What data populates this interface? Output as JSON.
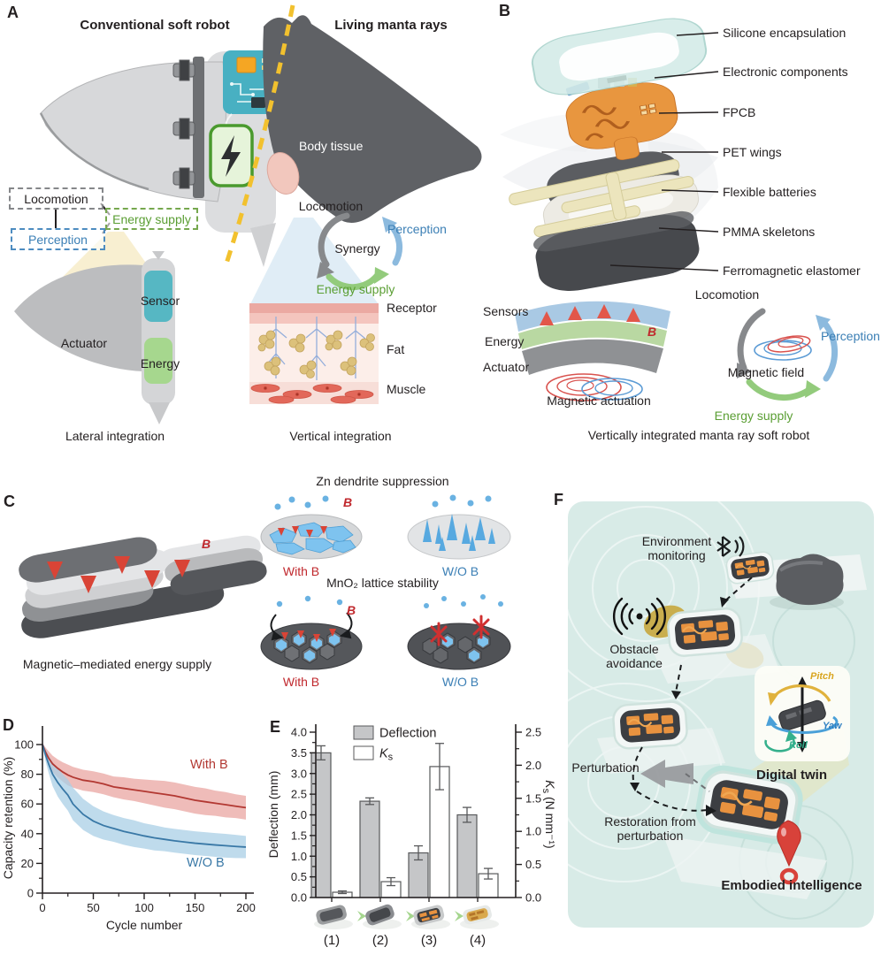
{
  "colors": {
    "red": "#c0282d",
    "blue": "#3b7fb5",
    "green": "#5a9e33",
    "gray": "#85878a",
    "teal_pcb": "#48b0c2",
    "battery_green": "#4a9a2e",
    "divider_yellow": "#f2c12e",
    "fpcb_orange": "#e8963f",
    "water": "#d8ebe7",
    "fin_gold": "#c9ae4e",
    "pitch_gold": "#d9a520",
    "yaw_blue": "#2d7fc2",
    "roll_green": "#2fae8a"
  },
  "panels": {
    "A": {
      "label": "A",
      "title_left": "Conventional soft robot",
      "title_right": "Living manta rays",
      "body_tissue": "Body tissue",
      "box_locomotion": "Locomotion",
      "box_perception": "Perception",
      "box_energy": "Energy supply",
      "actuator": "Actuator",
      "sensor": "Sensor",
      "energy": "Energy",
      "cycle_top": "Locomotion",
      "cycle_right": "Perception",
      "cycle_center": "Synergy",
      "cycle_bottom": "Energy supply",
      "skin_receptor": "Receptor",
      "skin_fat": "Fat",
      "skin_muscle": "Muscle",
      "caption_left": "Lateral integration",
      "caption_right": "Vertical integration"
    },
    "B": {
      "label": "B",
      "layers": [
        "Silicone encapsulation",
        "Electronic components",
        "FPCB",
        "PET wings",
        "Flexible batteries",
        "PMMA skeletons",
        "Ferromagnetic elastomer"
      ],
      "stack_sensors": "Sensors",
      "stack_energy": "Energy",
      "stack_actuator": "Actuator",
      "b_symbol": "B",
      "stack_caption": "Magnetic actuation",
      "cycle_top": "Locomotion",
      "cycle_right": "Perception",
      "cycle_center": "Magnetic field",
      "cycle_bottom": "Energy supply",
      "caption": "Vertically integrated manta ray soft robot"
    },
    "C": {
      "label": "C",
      "caption_left": "Magnetic–mediated energy supply",
      "b_symbol": "B",
      "zn_title": "Zn dendrite suppression",
      "mno2_title": "MnO₂ lattice stability",
      "with_b": "With B",
      "wo_b": "W/O B"
    },
    "D": {
      "label": "D"
    },
    "E": {
      "label": "E"
    },
    "F": {
      "label": "F",
      "environment_monitoring": "Environment monitoring",
      "obstacle_avoidance": "Obstacle avoidance",
      "perturbation": "Perturbation",
      "restoration": "Restoration from perturbation",
      "digital_twin": "Digital twin",
      "embodied": "Embodied intelligence",
      "pitch": "Pitch",
      "yaw": "Yaw",
      "roll": "Roll"
    }
  },
  "chart_data": [
    {
      "id": "D",
      "type": "line",
      "xlabel": "Cycle number",
      "ylabel": "Capacity retention (%)",
      "xlim": [
        0,
        200
      ],
      "ylim": [
        0,
        100
      ],
      "xticks": [
        0,
        50,
        100,
        150,
        200
      ],
      "yticks": [
        0,
        20,
        40,
        60,
        80,
        100
      ],
      "grid": false,
      "series": [
        {
          "name": "With B",
          "color": "#b23832",
          "band_color": "#e9a5a1",
          "x": [
            0,
            3,
            6,
            10,
            15,
            20,
            25,
            30,
            40,
            50,
            60,
            70,
            80,
            90,
            100,
            110,
            120,
            130,
            140,
            150,
            160,
            170,
            180,
            190,
            200
          ],
          "y": [
            100,
            95,
            91,
            87,
            84,
            81.5,
            79.5,
            78,
            76,
            75,
            73.5,
            71.5,
            70.5,
            69.5,
            68.5,
            67.5,
            66.5,
            65.5,
            64,
            62.5,
            61.5,
            60.5,
            59.5,
            58.5,
            57.5
          ],
          "band": [
            1,
            3,
            4.5,
            5.5,
            6,
            6.5,
            7,
            7,
            7,
            7,
            7,
            7,
            7.5,
            7.5,
            8,
            8.5,
            9,
            9,
            9,
            9,
            9,
            8.5,
            8.5,
            8,
            8
          ]
        },
        {
          "name": "W/O B",
          "color": "#3978a6",
          "band_color": "#a9cfe6",
          "x": [
            0,
            3,
            6,
            10,
            15,
            20,
            25,
            30,
            40,
            50,
            60,
            70,
            80,
            90,
            100,
            110,
            120,
            130,
            140,
            150,
            160,
            170,
            180,
            190,
            200
          ],
          "y": [
            100,
            93,
            87,
            80,
            74.5,
            70,
            66,
            60,
            53,
            48.5,
            45.5,
            43.5,
            41.5,
            40,
            38.5,
            37.2,
            36.2,
            35.2,
            34.4,
            33.6,
            33,
            32.4,
            31.9,
            31.4,
            31
          ],
          "band": [
            1,
            4,
            6,
            8,
            9.5,
            10,
            10.5,
            11,
            10.5,
            10,
            9.5,
            9,
            9,
            9,
            8.5,
            8.5,
            8,
            8,
            8,
            8,
            8,
            8,
            8,
            7.8,
            7.5
          ]
        }
      ]
    },
    {
      "id": "E",
      "type": "bar",
      "categories": [
        "(1)",
        "(2)",
        "(3)",
        "(4)"
      ],
      "series": [
        {
          "name": "Deflection",
          "axis": "left",
          "fill": "#c5c6c8",
          "stroke": "#58595b",
          "values": [
            3.5,
            2.33,
            1.08,
            2.0
          ],
          "errors": [
            0.17,
            0.08,
            0.17,
            0.18
          ]
        },
        {
          "name": "Ks",
          "axis": "right",
          "fill": "#ffffff",
          "stroke": "#58595b",
          "label_parts": {
            "base": "K",
            "sub": "s"
          },
          "values": [
            0.08,
            0.24,
            1.98,
            0.36
          ],
          "errors": [
            0.02,
            0.06,
            0.35,
            0.08
          ]
        }
      ],
      "ylabel_left": "Deflection (mm)",
      "ylabel_right_parts": {
        "base": "K",
        "sub": "s",
        "rest": " (N mm⁻¹)"
      },
      "ylim_left": [
        0,
        4.0
      ],
      "ylim_right": [
        0,
        2.5
      ],
      "yticks_left": [
        0,
        0.5,
        1.0,
        1.5,
        2.0,
        2.5,
        3.0,
        3.5,
        4.0
      ],
      "yticks_right": [
        0,
        0.5,
        1.0,
        1.5,
        2.0,
        2.5
      ],
      "legend_position": "top-left"
    }
  ]
}
